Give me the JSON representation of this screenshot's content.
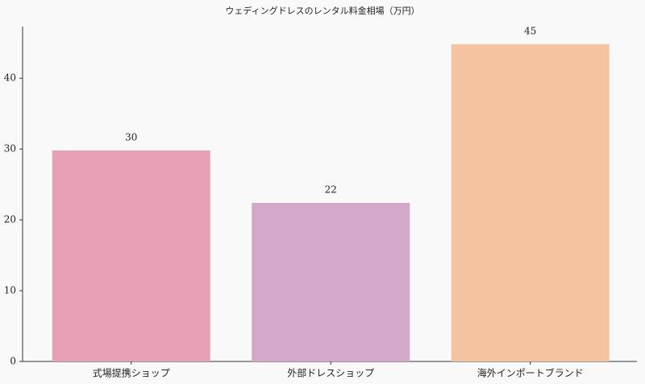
{
  "chart_data": {
    "type": "bar",
    "title": "ウェディングドレスのレンタル料金相場（万円）",
    "categories": [
      "式場提携ショップ",
      "外部ドレスショップ",
      "海外インポートブランド"
    ],
    "values": [
      29.8,
      22.4,
      44.8
    ],
    "value_labels": [
      "30",
      "22",
      "45"
    ],
    "colors": [
      "#e8a0b4",
      "#d4a8c8",
      "#f4c4a0"
    ],
    "ylim": [
      0,
      47.3
    ],
    "yticks": [
      0,
      10,
      20,
      30,
      40
    ],
    "grid": false
  }
}
